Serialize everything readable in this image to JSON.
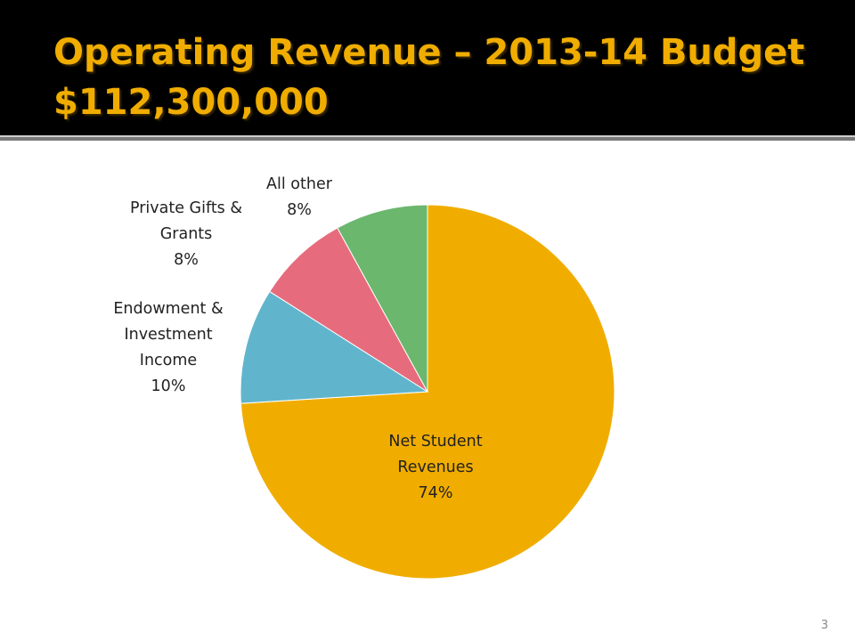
{
  "slide": {
    "title_line1": "Operating Revenue – 2013-14 Budget",
    "title_line2": "$112,300,000",
    "page_number": "3",
    "title_color": "#f0ad00",
    "header_bg": "#000000"
  },
  "chart_data": {
    "type": "pie",
    "categories": [
      "Net Student Revenues",
      "Endowment & Investment Income",
      "Private Gifts & Grants",
      "All other"
    ],
    "values": [
      74,
      10,
      8,
      8
    ],
    "value_labels": [
      "74%",
      "10%",
      "8%",
      "8%"
    ],
    "label_lines": [
      [
        "Net Student",
        "Revenues",
        "74%"
      ],
      [
        "Endowment &",
        "Investment",
        "Income",
        "10%"
      ],
      [
        "Private Gifts &",
        "Grants",
        "8%"
      ],
      [
        "All other",
        "8%"
      ]
    ],
    "colors": [
      "#f0ad00",
      "#60b5cc",
      "#e66c7d",
      "#6bb76d"
    ],
    "start_angle": "12 o'clock",
    "direction": "clockwise",
    "legend": "none"
  }
}
